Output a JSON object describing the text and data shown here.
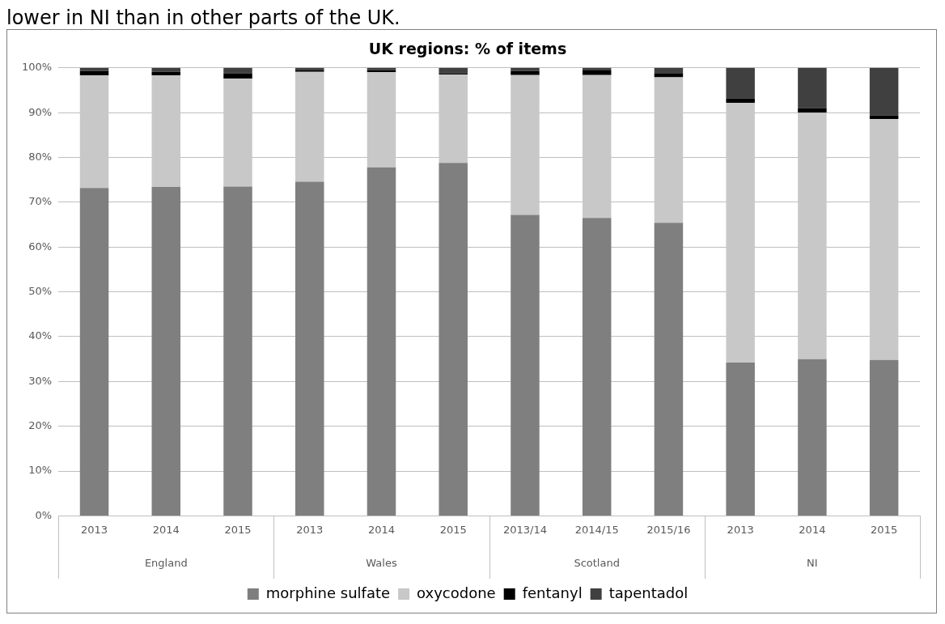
{
  "chart_data": {
    "type": "bar",
    "title": "UK regions: % of items",
    "stacked": true,
    "categories": [
      "2013",
      "2014",
      "2015",
      "2013",
      "2014",
      "2015",
      "2013/14",
      "2014/15",
      "2015/16",
      "2013",
      "2014",
      "2015"
    ],
    "series": [
      {
        "name": "morphine sulfate",
        "color": "#7f7f7f",
        "values": [
          73.2,
          73.4,
          73.5,
          74.6,
          77.8,
          78.8,
          67.2,
          66.5,
          65.4,
          34.2,
          35.0,
          34.8
        ]
      },
      {
        "name": "oxycodone",
        "color": "#c8c8c8",
        "values": [
          25.1,
          24.9,
          24.1,
          24.5,
          21.2,
          19.7,
          31.2,
          31.9,
          32.5,
          58.0,
          55.0,
          53.8
        ]
      },
      {
        "name": "fentanyl",
        "color": "#000000",
        "values": [
          1.0,
          0.8,
          1.2,
          0.3,
          0.5,
          0.3,
          0.9,
          1.0,
          0.8,
          1.0,
          1.0,
          0.8
        ]
      },
      {
        "name": "tapentadol",
        "color": "#404040",
        "values": [
          0.7,
          0.9,
          1.2,
          0.6,
          0.5,
          1.2,
          0.7,
          0.6,
          1.3,
          6.8,
          9.0,
          10.6
        ]
      }
    ],
    "ylim": [
      0,
      100
    ],
    "yticks": [
      {
        "value": 0,
        "label": "0%"
      },
      {
        "value": 10,
        "label": "10%"
      },
      {
        "value": 20,
        "label": "20%"
      },
      {
        "value": 30,
        "label": "30%"
      },
      {
        "value": 40,
        "label": "40%"
      },
      {
        "value": 50,
        "label": "50%"
      },
      {
        "value": 60,
        "label": "60%"
      },
      {
        "value": 70,
        "label": "70%"
      },
      {
        "value": 80,
        "label": "80%"
      },
      {
        "value": 90,
        "label": "90%"
      },
      {
        "value": 100,
        "label": "100%"
      }
    ],
    "grid": "y",
    "legend": "bottom",
    "annotations": [
      "lower in NI than in other parts of the UK.",
      "England",
      "Wales",
      "Scotland",
      "NI"
    ]
  }
}
